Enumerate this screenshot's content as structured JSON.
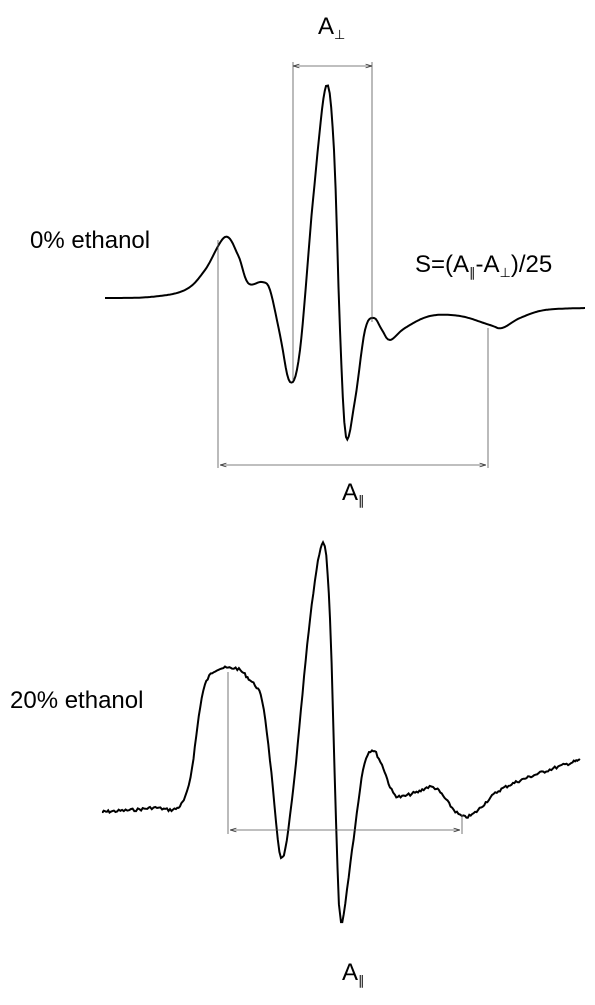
{
  "top_spectrum": {
    "label": "0% ethanol",
    "a_perp": {
      "letter": "A",
      "subscript": "⊥"
    },
    "a_par": {
      "letter": "A",
      "subscript": "∥"
    },
    "formula": [
      "S=(A",
      "∥",
      "-A",
      "⊥",
      ")/25"
    ]
  },
  "bottom_spectrum": {
    "label": "20% ethanol",
    "a_par": {
      "letter": "A",
      "subscript": "∥"
    }
  }
}
